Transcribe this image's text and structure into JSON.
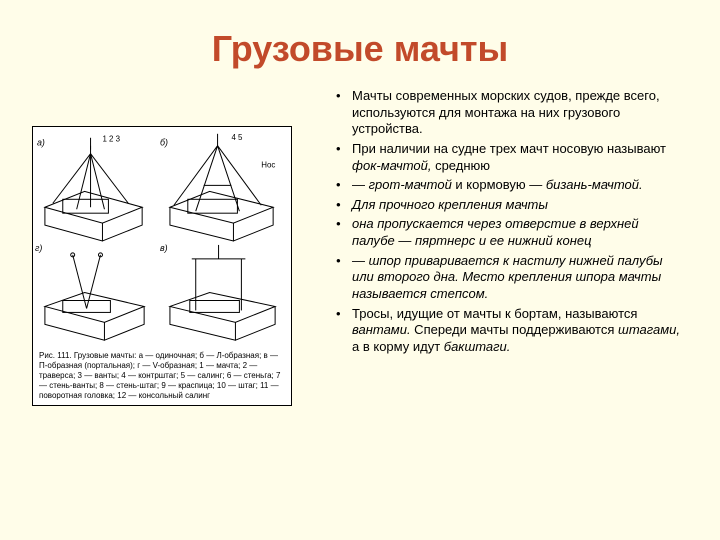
{
  "title": {
    "text": "Грузовые мачты",
    "color": "#c24a2a"
  },
  "figure": {
    "caption_title": "Рис. 111. Грузовые мачты:",
    "caption_body": "а — одиночная; б — Л-образная; в — П-образная (портальная); г — V-образная; 1 — мачта; 2 — траверса; 3 — ванты; 4 — контрштаг; 5 — салинг; 6 — стеньга; 7 — стень-ванты; 8 — стень-штаг; 9 — краспица; 10 — штаг; 11 — поворотная головка; 12 — консольный салинг",
    "stroke": "#000000",
    "bg": "#ffffff"
  },
  "bullets": [
    {
      "html": "Мачты современных морских судов, прежде всего, используются для монтажа на них грузового устройства.",
      "italic": false
    },
    {
      "html": "При наличии на судне трех мачт носовую называют <i>фок-мачтой,</i> среднюю",
      "italic": false
    },
    {
      "html": "— <i>грот-мачтой</i> и кормовую — <i>бизань-мачтой.</i>",
      "italic": false
    },
    {
      "html": "Для прочного крепления мачты",
      "italic": true
    },
    {
      "html": "она пропускается через отверстие в верхней палубе — пяртнерс и ее нижний конец",
      "italic": true
    },
    {
      "html": "— шпор приваривается к настилу нижней палубы или второго дна. Место крепления шпора мачты называется степсом.",
      "italic": true
    },
    {
      "html": "Тросы, идущие от мачты к бортам, называются <i>вантами.</i> Спереди мачты поддерживаются <i>штагами,</i> а в корму идут <i>бакштаги.</i>",
      "italic": false
    }
  ],
  "layout": {
    "body_fontsize": 13,
    "title_fontsize": 36
  }
}
